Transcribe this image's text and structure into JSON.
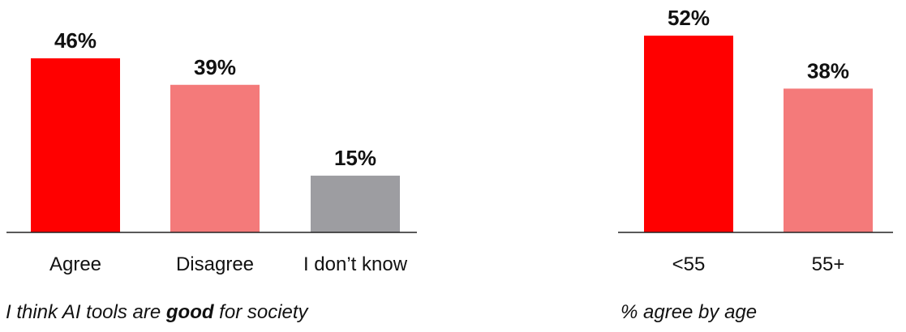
{
  "chart_data": [
    {
      "type": "bar",
      "categories": [
        "Agree",
        "Disagree",
        "I don’t know"
      ],
      "values": [
        46,
        39,
        15
      ],
      "value_labels": [
        "46%",
        "39%",
        "15%"
      ],
      "colors": [
        "#ff0000",
        "#f47a7a",
        "#9d9da1"
      ],
      "caption": {
        "before": "I think AI tools are ",
        "emphasis": "good",
        "after": " for society"
      },
      "ylim": [
        0,
        60
      ],
      "grid": false
    },
    {
      "type": "bar",
      "categories": [
        "<55",
        "55+"
      ],
      "values": [
        52,
        38
      ],
      "value_labels": [
        "52%",
        "38%"
      ],
      "colors": [
        "#ff0000",
        "#f47a7a"
      ],
      "caption": {
        "before": "% agree by age",
        "emphasis": "",
        "after": ""
      },
      "ylim": [
        0,
        60
      ],
      "grid": false
    }
  ]
}
